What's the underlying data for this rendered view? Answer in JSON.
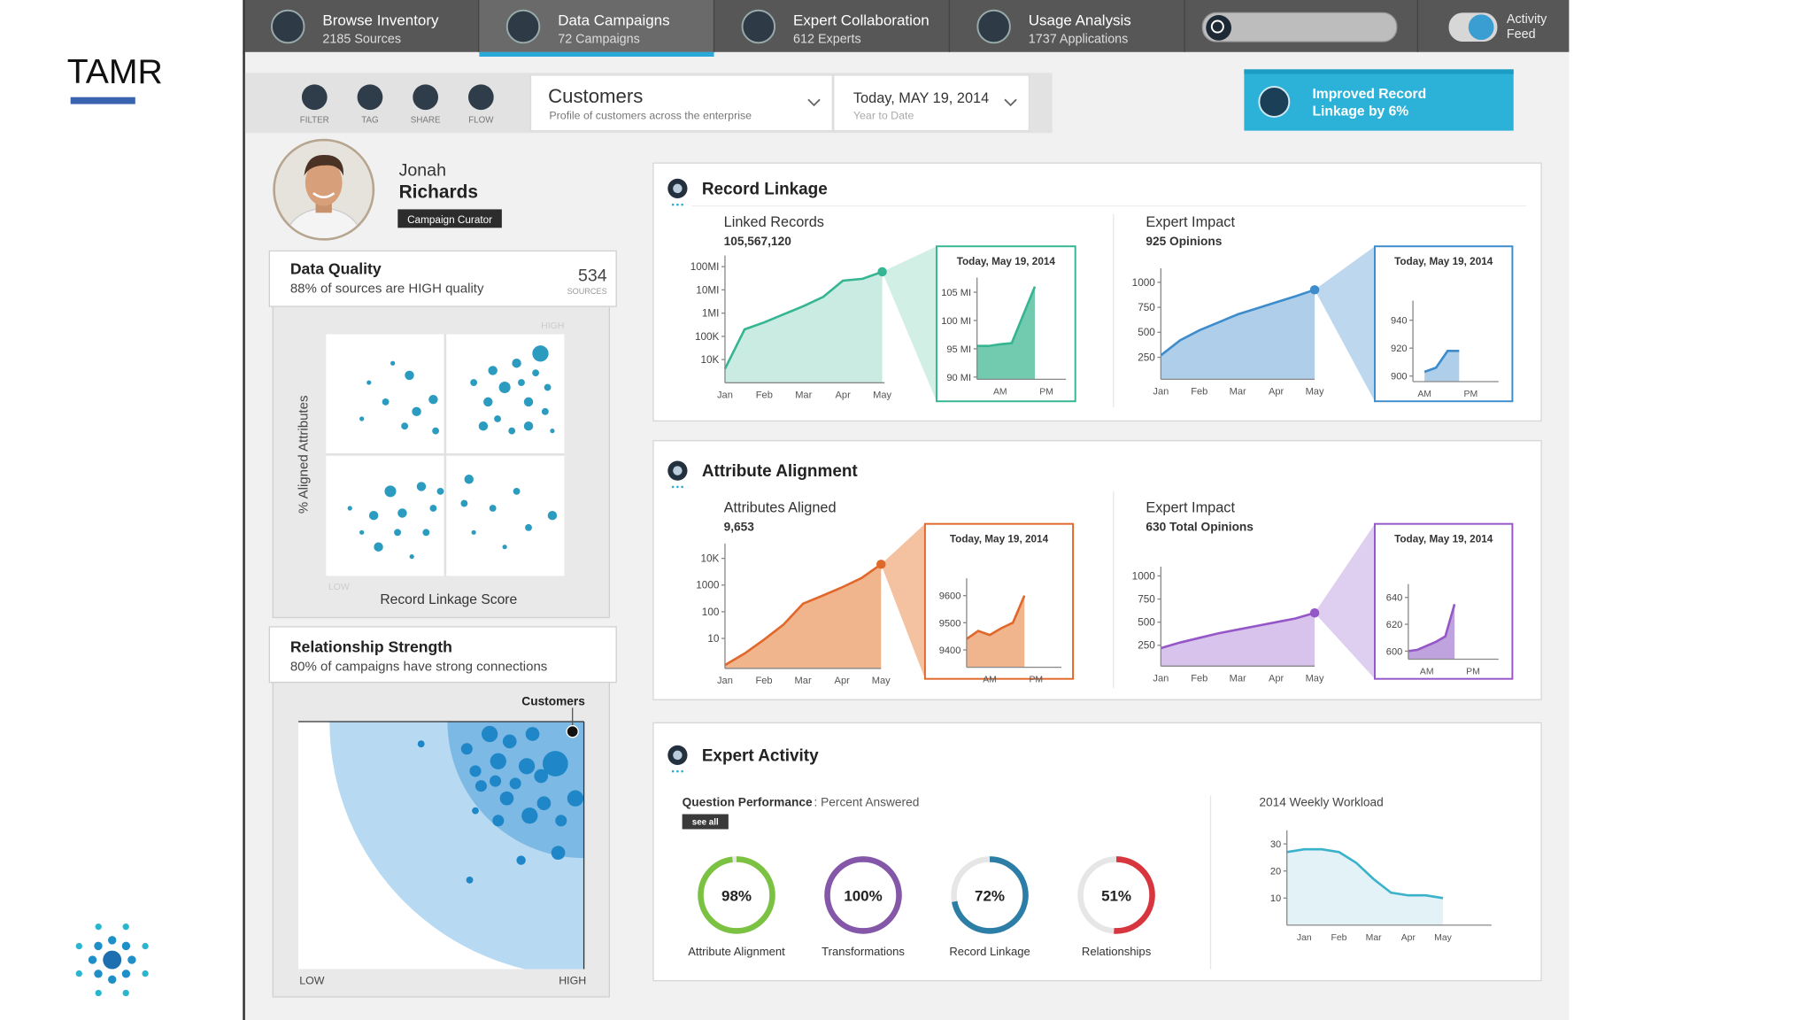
{
  "brand": "TAMR",
  "nav": {
    "items": [
      {
        "title": "Browse Inventory",
        "subtitle": "2185 Sources"
      },
      {
        "title": "Data Campaigns",
        "subtitle": "72 Campaigns"
      },
      {
        "title": "Expert Collaboration",
        "subtitle": "612 Experts"
      },
      {
        "title": "Usage Analysis",
        "subtitle": "1737 Applications"
      }
    ],
    "active": 1,
    "activity_feed": [
      "Activity",
      "Feed"
    ]
  },
  "toolbar": {
    "tools": [
      "FILTER",
      "TAG",
      "SHARE",
      "FLOW"
    ],
    "dropdown": {
      "title": "Customers",
      "subtitle": "Profile of customers across the enterprise"
    },
    "date": {
      "title": "Today, MAY 19, 2014",
      "subtitle": "Year to Date"
    }
  },
  "banner": [
    "Improved Record",
    "Linkage by 6%"
  ],
  "profile": {
    "first_name": "Jonah",
    "last_name": "Richards",
    "role": "Campaign Curator"
  },
  "data_quality": {
    "title": "Data Quality",
    "subtitle": "88% of sources are HIGH quality",
    "count": 534,
    "count_label": "SOURCES",
    "chart": {
      "type": "scatter",
      "x_label": "Record Linkage Score",
      "y_label": "% Aligned Attributes",
      "high_label": "HIGH",
      "low_label": "LOW",
      "xlim": [
        0,
        100
      ],
      "ylim": [
        0,
        100
      ],
      "color": "#2b9cbf",
      "x": [
        18,
        25,
        35,
        38,
        45,
        33,
        46,
        15,
        28,
        62,
        70,
        75,
        80,
        85,
        90,
        92,
        66,
        72,
        78,
        85,
        93,
        68,
        82,
        88,
        95,
        10,
        20,
        27,
        32,
        40,
        45,
        22,
        30,
        15,
        42,
        36,
        48,
        60,
        70,
        80,
        85,
        95,
        62,
        75,
        58
      ],
      "y": [
        80,
        72,
        83,
        68,
        73,
        62,
        60,
        65,
        88,
        80,
        85,
        78,
        88,
        72,
        92,
        68,
        62,
        65,
        60,
        62,
        78,
        72,
        80,
        84,
        60,
        28,
        25,
        35,
        26,
        37,
        28,
        12,
        18,
        18,
        18,
        8,
        35,
        40,
        28,
        35,
        20,
        25,
        18,
        12,
        30
      ],
      "size": [
        2,
        3,
        4,
        4,
        4,
        3,
        3,
        2,
        2,
        3,
        4,
        5,
        4,
        4,
        7,
        3,
        4,
        3,
        3,
        4,
        3,
        4,
        3,
        3,
        2,
        2,
        4,
        5,
        4,
        4,
        3,
        4,
        3,
        2,
        3,
        2,
        3,
        4,
        3,
        3,
        3,
        4,
        2,
        2,
        3
      ]
    }
  },
  "relationship": {
    "title": "Relationship Strength",
    "subtitle": "80% of campaigns have strong connections",
    "chart": {
      "type": "bubble",
      "low_label": "LOW",
      "high_label": "HIGH",
      "highlight_label": "Customers",
      "xlim": [
        0,
        100
      ],
      "ylim": [
        0,
        100
      ],
      "color": "#1f87c7",
      "outer_color": "#b7d9f1",
      "inner_color": "#7cb9e5",
      "x": [
        67,
        74,
        82,
        59,
        70,
        80,
        90,
        62,
        69,
        76,
        85,
        97,
        64,
        73,
        86,
        81,
        92,
        70,
        43,
        62,
        91,
        78,
        60
      ],
      "y": [
        95,
        92,
        95,
        89,
        84,
        82,
        83,
        80,
        76,
        75,
        78,
        69,
        74,
        69,
        67,
        62,
        60,
        60,
        91,
        64,
        47,
        44,
        36
      ],
      "size": [
        7,
        6,
        6,
        5,
        7,
        7,
        11,
        5,
        5,
        5,
        6,
        7,
        5,
        6,
        6,
        7,
        5,
        5,
        3,
        3,
        6,
        4,
        3
      ],
      "highlight": {
        "x": 96,
        "y": 96,
        "size": 5,
        "color": "#111111"
      }
    }
  },
  "record_linkage": {
    "title": "Record Linkage",
    "charts": [
      {
        "type": "area",
        "label": "Linked Records",
        "value_text": "105,567,120",
        "log": true,
        "end_marker": true,
        "categories": [
          "Jan",
          null,
          "Feb",
          null,
          "Mar",
          null,
          "Apr",
          null,
          "May"
        ],
        "values": [
          4000,
          200000,
          400000,
          900000,
          2000000,
          5000000,
          25000000,
          30000000,
          60000000
        ],
        "ylim": [
          1000,
          300000000
        ],
        "yticks": [
          {
            "value": 100000000,
            "label": "100MI"
          },
          {
            "value": 10000000,
            "label": "10MI"
          },
          {
            "value": 1000000,
            "label": "1MI"
          },
          {
            "value": 100000,
            "label": "100K"
          },
          {
            "value": 10000,
            "label": "10K"
          }
        ],
        "color": "#36b592",
        "area_color": "#c3e9de",
        "inset": {
          "type": "area",
          "title": "Today, May 19, 2014",
          "categories": [
            null,
            null,
            "AM",
            null,
            null,
            null,
            "PM",
            null
          ],
          "values": [
            95.5,
            95.5,
            95.8,
            96,
            101,
            106,
            null,
            null
          ],
          "ylim": [
            89.6,
            107.6
          ],
          "yticks": [
            {
              "value": 105,
              "label": "105 MI"
            },
            {
              "value": 100,
              "label": "100 MI"
            },
            {
              "value": 95,
              "label": "95 MI"
            },
            {
              "value": 90,
              "label": "90 MI"
            }
          ],
          "color": "#36b592",
          "area_color": "#63c4a6"
        }
      },
      {
        "type": "area",
        "label": "Expert Impact",
        "value_text": "925 Opinions",
        "log": false,
        "end_marker": true,
        "categories": [
          "Jan",
          null,
          "Feb",
          null,
          "Mar",
          null,
          "Apr",
          null,
          "May"
        ],
        "values": [
          270,
          420,
          520,
          600,
          680,
          740,
          800,
          860,
          925
        ],
        "ylim": [
          30,
          1140
        ],
        "yticks": [
          1000,
          750,
          500,
          250
        ],
        "color": "#3d8ccc",
        "area_color": "#a6c9e8",
        "inset": {
          "type": "area",
          "title": "Today, May 19, 2014",
          "categories": [
            null,
            "AM",
            null,
            null,
            null,
            "PM",
            null,
            null
          ],
          "values": [
            null,
            903,
            906,
            918,
            918,
            null,
            null,
            null
          ],
          "ylim": [
            896,
            954
          ],
          "yticks": [
            940,
            920,
            900
          ],
          "color": "#3d8ccc",
          "area_color": "#a6c9e8"
        }
      }
    ]
  },
  "attribute_alignment": {
    "title": "Attribute Alignment",
    "charts": [
      {
        "type": "area",
        "label": "Attributes Aligned",
        "value_text": "9,653",
        "log": true,
        "end_marker": true,
        "categories": [
          "Jan",
          null,
          "Feb",
          null,
          "Mar",
          null,
          "Apr",
          null,
          "May"
        ],
        "values": [
          1,
          2.7,
          9,
          33,
          200,
          400,
          820,
          1830,
          6000
        ],
        "ylim": [
          0.75,
          36000
        ],
        "yticks": [
          {
            "value": 10000,
            "label": "10K"
          },
          1000,
          100,
          10
        ],
        "color": "#e0682a",
        "area_color": "#f0ad82",
        "inset": {
          "type": "area",
          "title": "Today, May 19, 2014",
          "categories": [
            null,
            null,
            "AM",
            null,
            null,
            null,
            "PM",
            null
          ],
          "values": [
            9440,
            9470,
            9455,
            9480,
            9500,
            9600,
            null,
            null
          ],
          "ylim": [
            9336,
            9664
          ],
          "yticks": [
            9600,
            9500,
            9400
          ],
          "color": "#e0682a",
          "area_color": "#f0ad82"
        }
      },
      {
        "type": "area",
        "label": "Expert Impact",
        "value_text": "630 Total Opinions",
        "log": false,
        "end_marker": true,
        "categories": [
          "Jan",
          null,
          "Feb",
          null,
          "Mar",
          null,
          "Apr",
          null,
          "May"
        ],
        "values": [
          220,
          280,
          330,
          380,
          420,
          460,
          500,
          540,
          600
        ],
        "ylim": [
          25,
          1100
        ],
        "yticks": [
          1000,
          750,
          500,
          250
        ],
        "color": "#9557c7",
        "area_color": "#d3bdea",
        "inset": {
          "type": "area",
          "title": "Today, May 19, 2014",
          "categories": [
            null,
            null,
            "AM",
            null,
            null,
            null,
            null,
            "PM"
          ],
          "values": [
            600,
            601,
            604,
            607,
            611,
            635,
            null,
            null
          ],
          "ylim": [
            594,
            650
          ],
          "yticks": [
            640,
            620,
            600
          ],
          "color": "#9557c7",
          "area_color": "#b899dc"
        }
      }
    ]
  },
  "expert_activity": {
    "title": "Expert Activity",
    "question_performance": "Question Performance",
    "percent_answered": ": Percent Answered",
    "see_all": "see all",
    "rings": {
      "type": "donut",
      "categories": [
        "Attribute Alignment",
        "Transformations",
        "Record Linkage",
        "Relationships"
      ],
      "values": [
        98,
        100,
        72,
        51
      ],
      "value_labels": [
        "98%",
        "100%",
        "72%",
        "51%"
      ],
      "colors": [
        "#7cc242",
        "#8557a8",
        "#2d7ea6",
        "#d8363e"
      ]
    },
    "workload": {
      "type": "area",
      "title": "2014 Weekly Workload",
      "log": false,
      "categories": [
        null,
        "Jan",
        null,
        "Feb",
        null,
        "Mar",
        null,
        "Apr",
        null,
        "May"
      ],
      "values": [
        27,
        28,
        28,
        27,
        23,
        17,
        12,
        11,
        11,
        10
      ],
      "ylim": [
        0,
        35
      ],
      "yticks": [
        30,
        20,
        10
      ],
      "color": "#3bb2cb",
      "area_color": "#e0f1f6"
    }
  }
}
